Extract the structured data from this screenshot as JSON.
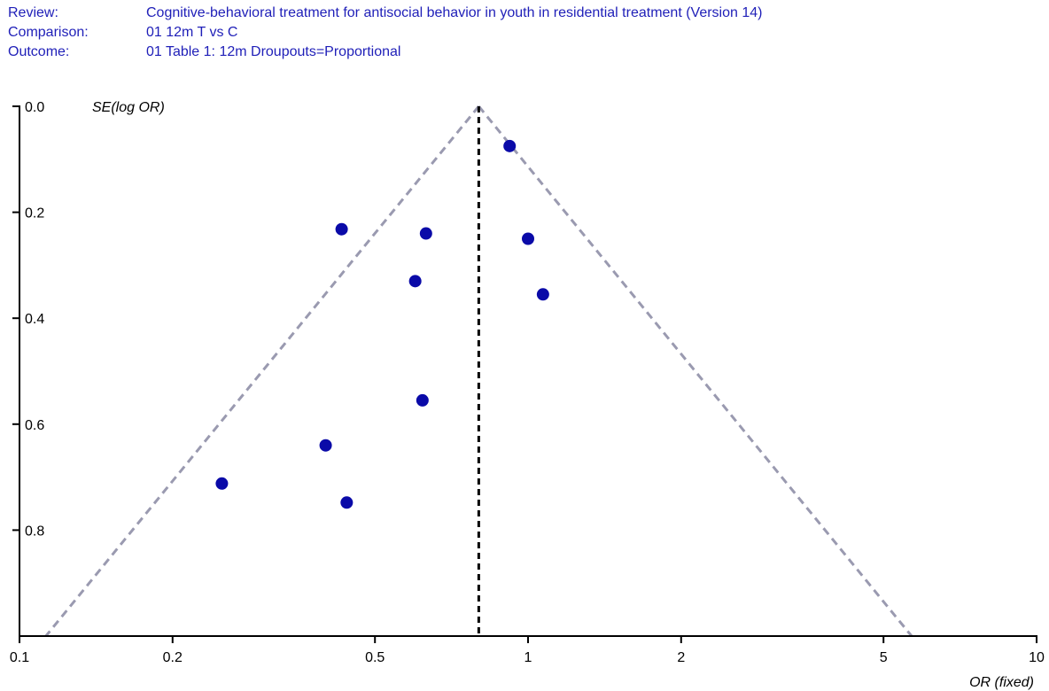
{
  "header": {
    "review_label": "Review:",
    "review_value": "Cognitive-behavioral treatment for antisocial behavior in youth in residential treatment (Version 14)",
    "comparison_label": "Comparison:",
    "comparison_value": "01 12m T vs C",
    "outcome_label": "Outcome:",
    "outcome_value": "01 Table 1: 12m Droupouts=Proportional"
  },
  "chart_data": {
    "type": "scatter",
    "title": "",
    "xlabel": "OR (fixed)",
    "ylabel": "SE(log OR)",
    "x_scale": "log",
    "y_inverted": true,
    "xlim": [
      0.1,
      10
    ],
    "ylim": [
      0,
      1.0
    ],
    "x_ticks": [
      0.1,
      0.2,
      0.5,
      1,
      2,
      5,
      10
    ],
    "x_tick_labels": [
      "0.1",
      "0.2",
      "0.5",
      "1",
      "2",
      "5",
      "10"
    ],
    "y_ticks": [
      0.0,
      0.2,
      0.4,
      0.6,
      0.8
    ],
    "y_tick_labels": [
      "0.0",
      "0.2",
      "0.4",
      "0.6",
      "0.8"
    ],
    "pooled_or": 0.8,
    "funnel_ci_multiplier": 1.96,
    "points": [
      {
        "x": 0.92,
        "y": 0.075
      },
      {
        "x": 0.43,
        "y": 0.232
      },
      {
        "x": 0.63,
        "y": 0.24
      },
      {
        "x": 1.0,
        "y": 0.25
      },
      {
        "x": 0.6,
        "y": 0.33
      },
      {
        "x": 1.07,
        "y": 0.355
      },
      {
        "x": 0.62,
        "y": 0.555
      },
      {
        "x": 0.4,
        "y": 0.64
      },
      {
        "x": 0.25,
        "y": 0.712
      },
      {
        "x": 0.44,
        "y": 0.748
      }
    ],
    "grid": false,
    "legend": "none",
    "colors": {
      "points": "#0a0aa8",
      "funnel": "#9a9ab0",
      "pooled_line": "#000000",
      "axes": "#000000"
    }
  }
}
